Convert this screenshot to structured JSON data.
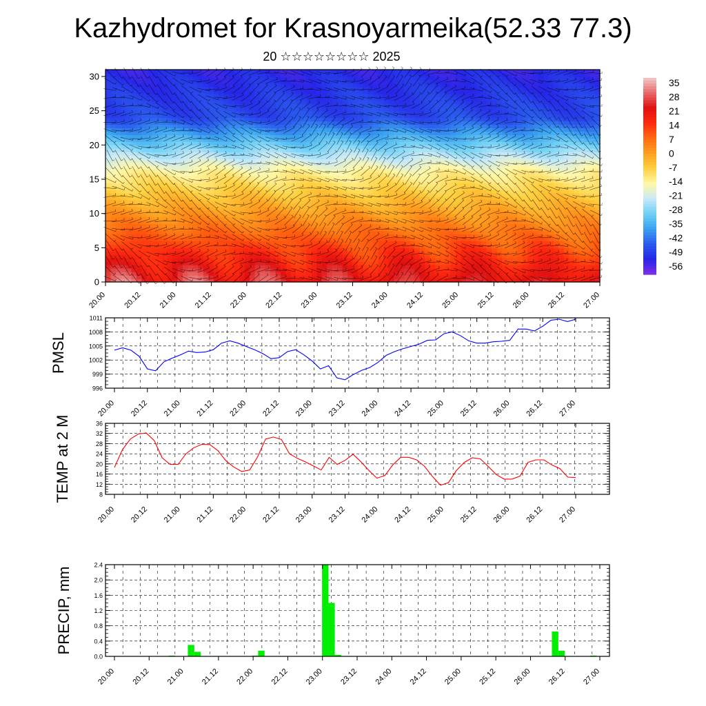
{
  "title": "Kazhydromet for Krasnoyarmeika(52.33 77.3)",
  "subtitle": "20 ☆☆☆☆☆☆☆☆ 2025",
  "x_tick_labels": [
    "20.00",
    "20.12",
    "21.00",
    "21.12",
    "22.00",
    "22.12",
    "23.00",
    "23.12",
    "24.00",
    "24.12",
    "25.00",
    "25.12",
    "26.00",
    "26.12",
    "27.00"
  ],
  "colors": {
    "pmsl": "#0000ff",
    "temp": "#ff0000",
    "precip": "#00ee00"
  },
  "chart_data": [
    {
      "type": "heatmap",
      "name": "cross-section",
      "y_ticks": [
        0,
        5,
        10,
        15,
        20,
        25,
        30
      ],
      "ylim": [
        0,
        31
      ],
      "colorbar_labels": [
        "35",
        "28",
        "21",
        "14",
        "7",
        "0",
        "-7",
        "-14",
        "-21",
        "-28",
        "-35",
        "-42",
        "-49",
        "-56"
      ],
      "colorbar_range": [
        -63,
        42
      ],
      "color_stops": [
        "#7f2fe6",
        "#2626e8",
        "#2a5aee",
        "#3aa0f0",
        "#6fd0f6",
        "#c8eaf8",
        "#fff8a8",
        "#ffd040",
        "#ffa020",
        "#ff6a10",
        "#ff2a10",
        "#e01010",
        "#e86a6a",
        "#f4c8c8"
      ]
    },
    {
      "type": "line",
      "ylabel": "PMSL",
      "ylim": [
        996,
        1011
      ],
      "y_ticks": [
        996,
        999,
        1002,
        1005,
        1008,
        1011
      ],
      "series": [
        {
          "values": [
            1004.1,
            1004.6,
            1004.1,
            1002.8,
            1000.1,
            999.7,
            1001.6,
            1002.4,
            1003.1,
            1003.9,
            1003.6,
            1003.7,
            1004.2,
            1005.6,
            1006.1,
            1005.6,
            1004.9,
            1004.2,
            1003.4,
            1002.3,
            1002.5,
            1003.8,
            1004.2,
            1003.1,
            1001.8,
            1000.1,
            1000.8,
            998.2,
            997.8,
            998.9,
            999.8,
            1000.4,
            1001.5,
            1003.0,
            1003.8,
            1004.4,
            1004.9,
            1005.4,
            1006.2,
            1006.3,
            1007.6,
            1008.0,
            1007.2,
            1006.1,
            1005.6,
            1005.6,
            1005.9,
            1006.0,
            1006.2,
            1008.6,
            1008.6,
            1008.2,
            1009.2,
            1010.5,
            1010.7,
            1010.2,
            1010.7
          ]
        }
      ]
    },
    {
      "type": "line",
      "ylabel": "TEMP at 2 M",
      "ylim": [
        8,
        36
      ],
      "y_ticks": [
        8,
        12,
        16,
        20,
        24,
        28,
        32,
        36
      ],
      "series": [
        {
          "values": [
            18.6,
            25.6,
            29.8,
            31.8,
            32.2,
            29.2,
            22.4,
            19.8,
            19.8,
            24.0,
            26.4,
            27.7,
            27.6,
            25.3,
            21.3,
            18.8,
            17.0,
            17.6,
            22.8,
            29.8,
            30.6,
            29.6,
            24.0,
            22.2,
            20.8,
            19.2,
            17.6,
            22.6,
            19.8,
            21.4,
            23.8,
            20.8,
            17.4,
            14.4,
            15.4,
            19.6,
            22.6,
            22.6,
            21.6,
            19.0,
            15.0,
            11.6,
            12.6,
            17.4,
            20.6,
            22.4,
            22.0,
            19.0,
            15.8,
            14.0,
            14.0,
            15.2,
            20.6,
            21.6,
            21.6,
            19.6,
            18.2,
            14.8,
            14.6
          ]
        }
      ]
    },
    {
      "type": "bar",
      "ylabel": "PRECIP, mm",
      "ylim": [
        0,
        2.4
      ],
      "y_ticks": [
        "0.0",
        "0.4",
        "0.8",
        "1.2",
        "1.6",
        "2.0",
        "2.4"
      ],
      "values": [
        0,
        0,
        0,
        0,
        0,
        0,
        0,
        0,
        0,
        0.02,
        0,
        0,
        0.3,
        0.12,
        0,
        0,
        0,
        0,
        0,
        0,
        0,
        0,
        0.02,
        0.15,
        0,
        0,
        0,
        0,
        0,
        0,
        0,
        0,
        0,
        2.4,
        1.4,
        0.04,
        0,
        0,
        0,
        0,
        0,
        0,
        0,
        0,
        0,
        0,
        0,
        0,
        0,
        0,
        0,
        0,
        0,
        0,
        0,
        0,
        0,
        0,
        0,
        0,
        0,
        0,
        0,
        0,
        0,
        0,
        0,
        0,
        0,
        0.65,
        0.15,
        0,
        0,
        0,
        0,
        0.02,
        0
      ]
    }
  ]
}
